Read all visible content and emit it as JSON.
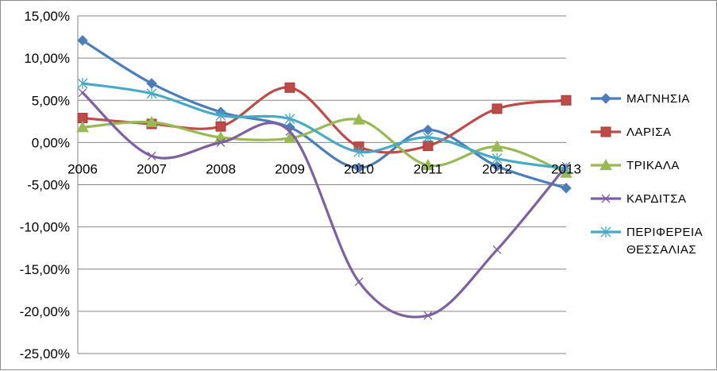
{
  "chart_data": {
    "type": "line",
    "title": "",
    "xlabel": "",
    "ylabel": "",
    "categories": [
      "2006",
      "2007",
      "2008",
      "2009",
      "2010",
      "2011",
      "2012",
      "2013"
    ],
    "ylim": [
      -25,
      15
    ],
    "ystep": 5,
    "y_tick_labels": [
      "15,00%",
      "10,00%",
      "5,00%",
      "0,00%",
      "-5,00%",
      "-10,00%",
      "-15,00%",
      "-20,00%",
      "-25,00%"
    ],
    "grid": true,
    "smooth": true,
    "legend": "right",
    "series": [
      {
        "name": "ΜΑΓΝΗΣΙΑ",
        "color": "#4a7ebb",
        "marker": "diamond",
        "values": [
          12.1,
          7.0,
          3.6,
          1.8,
          -3.0,
          1.5,
          -2.8,
          -5.4
        ]
      },
      {
        "name": "ΛΑΡΙΣΑ",
        "color": "#be4b48",
        "marker": "square",
        "values": [
          2.9,
          2.2,
          1.9,
          6.5,
          -0.5,
          -0.4,
          4.0,
          5.0
        ]
      },
      {
        "name": "ΤΡΙΚΑΛΑ",
        "color": "#98b954",
        "marker": "triangle",
        "values": [
          1.8,
          2.4,
          0.6,
          0.5,
          2.7,
          -2.7,
          -0.5,
          -3.6
        ]
      },
      {
        "name": "ΚΑΡΔΙΤΣΑ",
        "color": "#7d60a0",
        "marker": "x",
        "values": [
          5.9,
          -1.6,
          0.0,
          1.3,
          -16.5,
          -20.5,
          -12.7,
          -2.8
        ]
      },
      {
        "name": "ΠΕΡΙΦΕΡΕΙΑ ΘΕΣΣΑΛΙΑΣ",
        "color": "#46aac5",
        "marker": "star",
        "label_lines": [
          "ΠΕΡΙΦΕΡΕΙΑ",
          "ΘΕΣΣΑΛΙΑΣ"
        ],
        "values": [
          7.0,
          5.8,
          3.2,
          2.8,
          -1.1,
          0.6,
          -1.9,
          -3.1
        ]
      }
    ]
  }
}
